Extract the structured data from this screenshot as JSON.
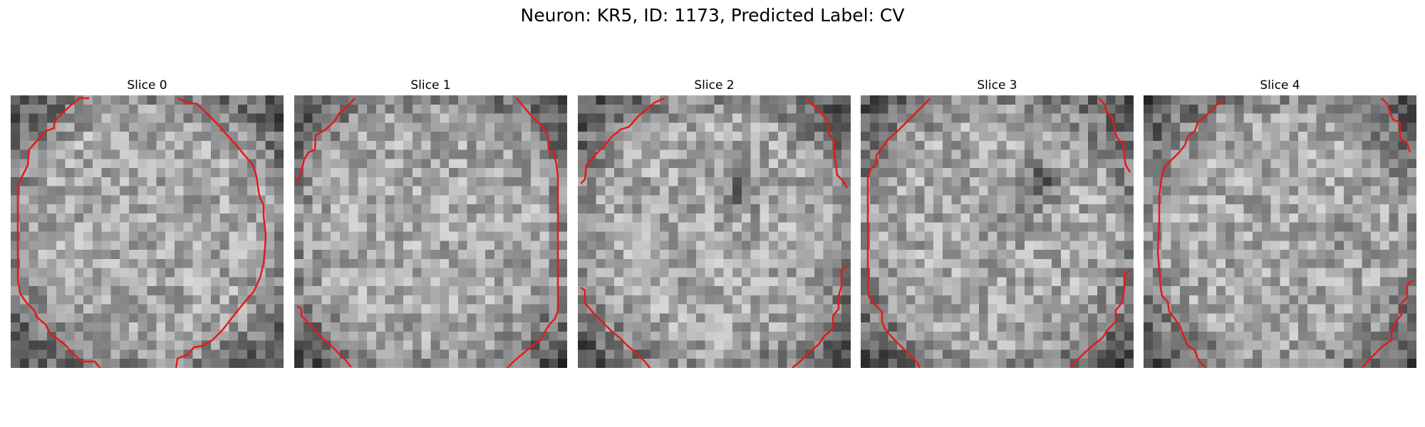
{
  "figure": {
    "title": "Neuron: KR5, ID: 1173, Predicted Label: CV",
    "contour_color": "#e31a1c",
    "colormap": "gray"
  },
  "panels": [
    {
      "title": "Slice 0"
    },
    {
      "title": "Slice 1"
    },
    {
      "title": "Slice 2"
    },
    {
      "title": "Slice 3"
    },
    {
      "title": "Slice 4"
    }
  ]
}
